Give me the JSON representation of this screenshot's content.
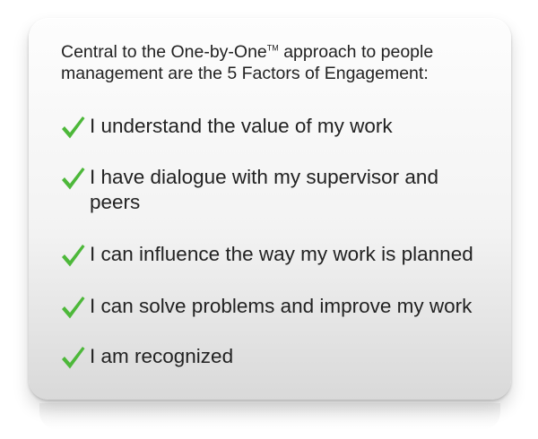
{
  "intro": {
    "line1_prefix": "Central to the One-by-One",
    "trademark": "TM",
    "line1_suffix": " approach to people",
    "line2": "management are the 5 Factors of Engagement:"
  },
  "check_icon": "checkmark-icon",
  "colors": {
    "check": "#4db83a",
    "text": "#222222",
    "card_top": "#fdfdfd",
    "card_bottom": "#d9d9d9"
  },
  "factors": [
    "I understand the value of my work",
    "I have dialogue with my supervisor and peers",
    "I can influence the way my work is planned",
    "I can solve problems and improve my work",
    "I am recognized"
  ]
}
